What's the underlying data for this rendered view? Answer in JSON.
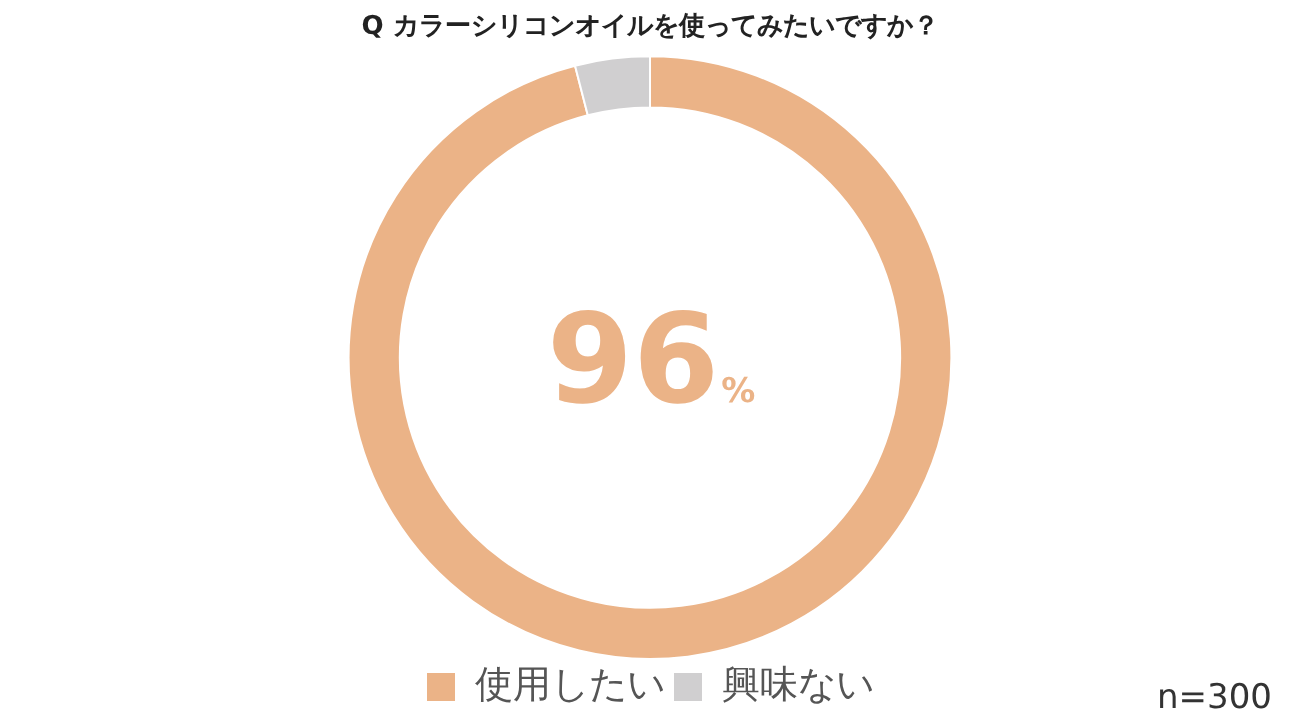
{
  "chart_data": {
    "type": "donut",
    "title": "Q カラーシリコンオイルを使ってみたいですか？",
    "categories": [
      "使用したい",
      "興味ない"
    ],
    "values": [
      96,
      4
    ],
    "colors": [
      "#ebb387",
      "#d0cfd0"
    ],
    "value_labels": [
      "96%",
      null
    ],
    "legend": "bottom",
    "annotations": [
      "n=300"
    ]
  }
}
